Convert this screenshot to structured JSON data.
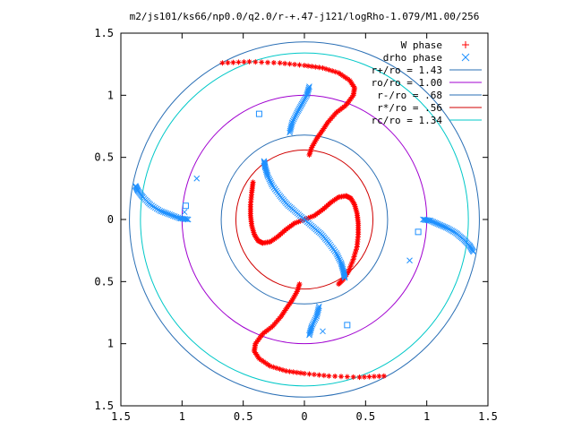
{
  "chart_data": {
    "type": "scatter",
    "title": "m2/js101/ks66/np0.0/q2.0/r-+.47-j121/logRho-1.079/M1.00/256",
    "xlim": [
      -1.5,
      1.5
    ],
    "ylim": [
      -1.5,
      1.5
    ],
    "x_ticks": [
      -1.5,
      -1,
      -0.5,
      0,
      0.5,
      1,
      1.5
    ],
    "y_ticks": [
      1.5,
      1,
      0.5,
      0,
      -0.5,
      -1,
      -1.5
    ],
    "x_tick_labels": [
      "1.5",
      "1",
      "0.5",
      "0",
      "0.5",
      "1",
      "1.5"
    ],
    "y_tick_labels": [
      "1.5",
      "1",
      "0.5",
      "0",
      "0.5",
      "1",
      "1.5"
    ],
    "grid": false,
    "legend_position": "top-right",
    "colors": {
      "w_phase": "#ff0000",
      "drho_phase": "#1e90ff",
      "r_plus": "#2a6fb5",
      "ro": "#a000d0",
      "r_minus": "#2a6fb5",
      "r_star": "#d00000",
      "rc": "#00c8c8"
    },
    "series": [
      {
        "name": "W phase",
        "marker": "plus-star",
        "arms": [
          [
            [
              0.0,
              0.0
            ],
            [
              0.08,
              0.03
            ],
            [
              0.15,
              0.08
            ],
            [
              0.22,
              0.14
            ],
            [
              0.28,
              0.18
            ],
            [
              0.34,
              0.19
            ],
            [
              0.38,
              0.17
            ],
            [
              0.41,
              0.12
            ],
            [
              0.43,
              0.05
            ],
            [
              0.44,
              -0.03
            ],
            [
              0.44,
              -0.12
            ],
            [
              0.43,
              -0.22
            ],
            [
              0.4,
              -0.32
            ],
            [
              0.36,
              -0.42
            ],
            [
              0.32,
              -0.48
            ],
            [
              0.28,
              -0.52
            ]
          ],
          [
            [
              0.0,
              0.0
            ],
            [
              -0.08,
              -0.03
            ],
            [
              -0.15,
              -0.08
            ],
            [
              -0.22,
              -0.14
            ],
            [
              -0.28,
              -0.18
            ],
            [
              -0.34,
              -0.19
            ],
            [
              -0.38,
              -0.17
            ],
            [
              -0.41,
              -0.12
            ],
            [
              -0.43,
              -0.05
            ],
            [
              -0.44,
              0.03
            ],
            [
              -0.44,
              0.12
            ],
            [
              -0.43,
              0.22
            ],
            [
              -0.42,
              0.3
            ]
          ],
          [
            [
              0.04,
              0.52
            ],
            [
              0.06,
              0.58
            ],
            [
              0.1,
              0.65
            ],
            [
              0.15,
              0.72
            ],
            [
              0.19,
              0.78
            ],
            [
              0.26,
              0.86
            ],
            [
              0.34,
              0.92
            ],
            [
              0.4,
              1.0
            ],
            [
              0.41,
              1.06
            ],
            [
              0.37,
              1.12
            ],
            [
              0.28,
              1.18
            ],
            [
              0.15,
              1.22
            ],
            [
              0.0,
              1.24
            ],
            [
              -0.2,
              1.26
            ],
            [
              -0.45,
              1.27
            ],
            [
              -0.67,
              1.26
            ]
          ],
          [
            [
              -0.04,
              -0.52
            ],
            [
              -0.06,
              -0.58
            ],
            [
              -0.1,
              -0.65
            ],
            [
              -0.15,
              -0.72
            ],
            [
              -0.19,
              -0.78
            ],
            [
              -0.26,
              -0.86
            ],
            [
              -0.34,
              -0.92
            ],
            [
              -0.4,
              -1.0
            ],
            [
              -0.41,
              -1.06
            ],
            [
              -0.37,
              -1.12
            ],
            [
              -0.28,
              -1.18
            ],
            [
              -0.15,
              -1.22
            ],
            [
              0.0,
              -1.24
            ],
            [
              0.2,
              -1.26
            ],
            [
              0.45,
              -1.27
            ],
            [
              0.65,
              -1.26
            ]
          ]
        ]
      },
      {
        "name": "drho phase",
        "marker": "cross-box",
        "arms": [
          [
            [
              0.0,
              0.0
            ],
            [
              -0.07,
              0.06
            ],
            [
              -0.14,
              0.12
            ],
            [
              -0.2,
              0.19
            ],
            [
              -0.26,
              0.27
            ],
            [
              -0.3,
              0.35
            ],
            [
              -0.32,
              0.42
            ],
            [
              -0.33,
              0.47
            ]
          ],
          [
            [
              0.0,
              0.0
            ],
            [
              0.07,
              -0.06
            ],
            [
              0.14,
              -0.12
            ],
            [
              0.2,
              -0.19
            ],
            [
              0.26,
              -0.27
            ],
            [
              0.3,
              -0.35
            ],
            [
              0.32,
              -0.42
            ],
            [
              0.33,
              -0.47
            ]
          ],
          [
            [
              -0.12,
              0.7
            ],
            [
              -0.1,
              0.78
            ],
            [
              -0.06,
              0.86
            ],
            [
              -0.02,
              0.93
            ],
            [
              0.02,
              1.0
            ],
            [
              0.04,
              1.07
            ]
          ],
          [
            [
              0.12,
              -0.7
            ],
            [
              0.1,
              -0.78
            ],
            [
              0.06,
              -0.86
            ],
            [
              0.04,
              -0.93
            ]
          ],
          [
            [
              -0.95,
              0.0
            ],
            [
              -1.02,
              0.01
            ],
            [
              -1.1,
              0.04
            ],
            [
              -1.18,
              0.07
            ],
            [
              -1.26,
              0.12
            ],
            [
              -1.32,
              0.18
            ],
            [
              -1.36,
              0.23
            ],
            [
              -1.38,
              0.27
            ]
          ],
          [
            [
              0.97,
              0.0
            ],
            [
              1.03,
              -0.01
            ],
            [
              1.1,
              -0.04
            ],
            [
              1.17,
              -0.07
            ],
            [
              1.24,
              -0.11
            ],
            [
              1.3,
              -0.16
            ],
            [
              1.35,
              -0.21
            ],
            [
              1.38,
              -0.26
            ]
          ]
        ],
        "extra_points": [
          [
            -0.37,
            0.85
          ],
          [
            -0.88,
            0.33
          ],
          [
            -0.97,
            0.11
          ],
          [
            -0.98,
            0.06
          ],
          [
            0.93,
            -0.1
          ],
          [
            0.86,
            -0.33
          ],
          [
            0.35,
            -0.85
          ],
          [
            0.15,
            -0.9
          ]
        ]
      }
    ],
    "circles": [
      {
        "name": "r+/ro = 1.43",
        "radius": 1.43,
        "color": "#2a6fb5"
      },
      {
        "name": "ro/ro = 1.00",
        "radius": 1.0,
        "color": "#a000d0"
      },
      {
        "name": "r-/ro = .68",
        "radius": 0.68,
        "color": "#2a6fb5"
      },
      {
        "name": "r*/ro = .56",
        "radius": 0.56,
        "color": "#d00000"
      },
      {
        "name": "rc/ro = 1.34",
        "radius": 1.34,
        "color": "#00c8c8"
      }
    ]
  }
}
